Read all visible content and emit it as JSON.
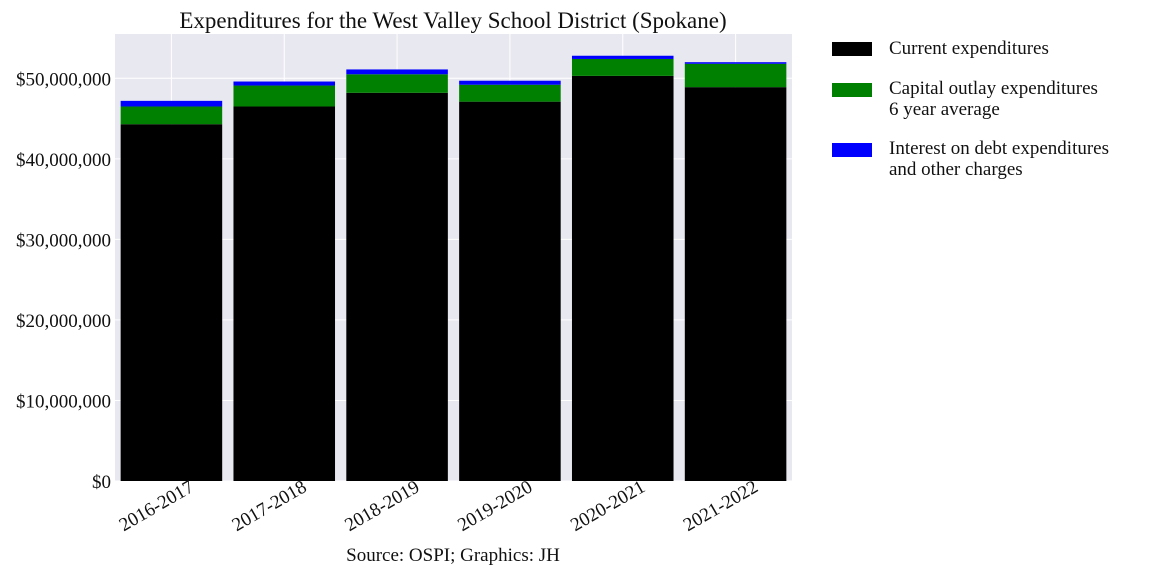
{
  "chart_data": {
    "type": "bar",
    "stacked": true,
    "title": "Expenditures for the West Valley School District (Spokane)",
    "caption": "Source: OSPI; Graphics: JH",
    "xlabel": "",
    "ylabel": "",
    "categories": [
      "2016-2017",
      "2017-2018",
      "2018-2019",
      "2019-2020",
      "2020-2021",
      "2021-2022"
    ],
    "series": [
      {
        "name": "Current expenditures",
        "color": "#000000",
        "values": [
          44300000,
          46500000,
          48200000,
          47100000,
          50300000,
          48900000
        ]
      },
      {
        "name": "Capital outlay expenditures\n6 year average",
        "color": "#008000",
        "values": [
          2200000,
          2600000,
          2300000,
          2100000,
          2100000,
          2900000
        ]
      },
      {
        "name": "Interest on debt expenditures\nand other charges",
        "color": "#0000ff",
        "values": [
          700000,
          500000,
          600000,
          500000,
          400000,
          200000
        ]
      }
    ],
    "yticks": [
      0,
      10000000,
      20000000,
      30000000,
      40000000,
      50000000
    ],
    "ytick_labels": [
      "$0",
      "$10,000,000",
      "$20,000,000",
      "$30,000,000",
      "$40,000,000",
      "$50,000,000"
    ],
    "ylim": [
      0,
      55500000
    ],
    "grid": true,
    "legend_position": "outside-right"
  }
}
